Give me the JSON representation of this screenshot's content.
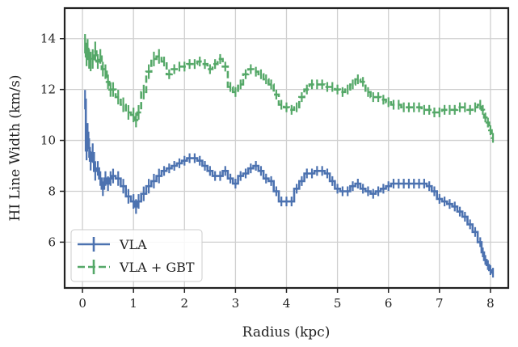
{
  "chart_data": {
    "type": "line",
    "title": "",
    "xlabel": "Radius (kpc)",
    "ylabel": "HI Line Width (km/s)",
    "xlim": [
      -0.35,
      8.35
    ],
    "ylim": [
      4.2,
      15.2
    ],
    "xticks": [
      0,
      1,
      2,
      3,
      4,
      5,
      6,
      7,
      8
    ],
    "yticks": [
      6,
      8,
      10,
      12,
      14
    ],
    "grid": true,
    "legend": {
      "placement": "bottom-left"
    },
    "series": [
      {
        "name": "VLA",
        "color": "#4C72B0",
        "style": "solid",
        "x": [
          0.05,
          0.08,
          0.1,
          0.13,
          0.16,
          0.2,
          0.25,
          0.3,
          0.35,
          0.4,
          0.45,
          0.5,
          0.55,
          0.6,
          0.7,
          0.8,
          0.9,
          1.0,
          1.05,
          1.1,
          1.2,
          1.3,
          1.4,
          1.5,
          1.6,
          1.7,
          1.8,
          1.9,
          2.0,
          2.1,
          2.2,
          2.3,
          2.4,
          2.5,
          2.6,
          2.7,
          2.8,
          2.9,
          3.0,
          3.1,
          3.2,
          3.3,
          3.4,
          3.5,
          3.6,
          3.7,
          3.8,
          3.9,
          4.0,
          4.1,
          4.2,
          4.3,
          4.4,
          4.5,
          4.6,
          4.7,
          4.8,
          4.9,
          5.0,
          5.1,
          5.2,
          5.3,
          5.4,
          5.5,
          5.6,
          5.7,
          5.8,
          5.9,
          6.0,
          6.1,
          6.2,
          6.3,
          6.4,
          6.5,
          6.6,
          6.7,
          6.8,
          6.9,
          7.0,
          7.1,
          7.2,
          7.3,
          7.4,
          7.5,
          7.6,
          7.7,
          7.8,
          7.85,
          7.9,
          7.95,
          8.0,
          8.05
        ],
        "y": [
          11.6,
          9.6,
          10.3,
          9.7,
          9.2,
          9.5,
          8.8,
          8.9,
          8.5,
          8.1,
          8.5,
          8.3,
          8.5,
          8.6,
          8.5,
          8.2,
          7.8,
          7.6,
          7.4,
          7.6,
          7.9,
          8.2,
          8.4,
          8.6,
          8.8,
          8.9,
          9.0,
          9.1,
          9.2,
          9.3,
          9.3,
          9.2,
          9.0,
          8.8,
          8.6,
          8.6,
          8.8,
          8.5,
          8.3,
          8.6,
          8.7,
          8.9,
          9.0,
          8.8,
          8.5,
          8.4,
          8.0,
          7.6,
          7.6,
          7.6,
          8.1,
          8.4,
          8.7,
          8.7,
          8.8,
          8.8,
          8.7,
          8.4,
          8.1,
          8.0,
          8.0,
          8.2,
          8.3,
          8.1,
          8.0,
          7.9,
          8.0,
          8.1,
          8.2,
          8.3,
          8.3,
          8.3,
          8.3,
          8.3,
          8.3,
          8.3,
          8.2,
          8.0,
          7.7,
          7.6,
          7.5,
          7.4,
          7.2,
          7.0,
          6.7,
          6.4,
          6.0,
          5.6,
          5.3,
          5.1,
          4.9,
          4.8
        ]
      },
      {
        "name": "VLA + GBT",
        "color": "#55A868",
        "style": "dashed",
        "x": [
          0.05,
          0.08,
          0.1,
          0.13,
          0.16,
          0.2,
          0.25,
          0.3,
          0.35,
          0.4,
          0.45,
          0.5,
          0.55,
          0.6,
          0.7,
          0.8,
          0.9,
          1.0,
          1.05,
          1.1,
          1.2,
          1.3,
          1.4,
          1.5,
          1.6,
          1.7,
          1.8,
          1.9,
          2.0,
          2.1,
          2.2,
          2.3,
          2.4,
          2.5,
          2.6,
          2.7,
          2.8,
          2.9,
          3.0,
          3.1,
          3.2,
          3.3,
          3.4,
          3.5,
          3.6,
          3.7,
          3.8,
          3.9,
          4.0,
          4.1,
          4.2,
          4.3,
          4.4,
          4.5,
          4.6,
          4.7,
          4.8,
          4.9,
          5.0,
          5.1,
          5.2,
          5.3,
          5.4,
          5.5,
          5.6,
          5.7,
          5.8,
          5.9,
          6.0,
          6.1,
          6.2,
          6.3,
          6.4,
          6.5,
          6.6,
          6.7,
          6.8,
          6.9,
          7.0,
          7.1,
          7.2,
          7.3,
          7.4,
          7.5,
          7.6,
          7.7,
          7.8,
          7.85,
          7.9,
          7.95,
          8.0,
          8.05
        ],
        "y": [
          13.8,
          13.3,
          13.6,
          13.2,
          13.1,
          13.2,
          13.5,
          13.1,
          13.3,
          12.8,
          12.7,
          12.3,
          12.0,
          12.0,
          11.7,
          11.4,
          11.1,
          11.0,
          10.8,
          11.1,
          11.9,
          12.7,
          13.2,
          13.3,
          13.1,
          12.6,
          12.8,
          12.9,
          12.9,
          13.0,
          13.0,
          13.1,
          13.0,
          12.8,
          13.0,
          13.2,
          12.9,
          12.1,
          11.9,
          12.2,
          12.6,
          12.8,
          12.7,
          12.6,
          12.4,
          12.2,
          11.8,
          11.4,
          11.3,
          11.2,
          11.3,
          11.7,
          12.0,
          12.2,
          12.2,
          12.2,
          12.1,
          12.1,
          12.0,
          11.9,
          12.0,
          12.2,
          12.4,
          12.3,
          11.9,
          11.7,
          11.7,
          11.6,
          11.5,
          11.4,
          11.4,
          11.3,
          11.3,
          11.3,
          11.3,
          11.2,
          11.2,
          11.1,
          11.1,
          11.2,
          11.2,
          11.2,
          11.3,
          11.3,
          11.2,
          11.3,
          11.4,
          11.2,
          10.9,
          10.7,
          10.4,
          10.1
        ]
      }
    ]
  }
}
